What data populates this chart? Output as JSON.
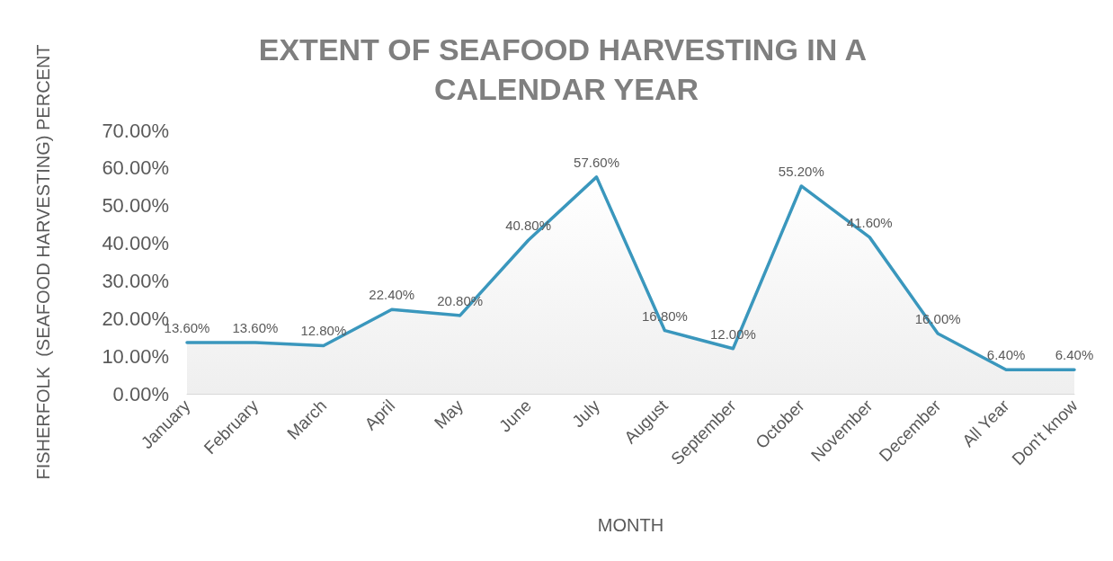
{
  "chart_data": {
    "type": "area",
    "title": "EXTENT OF SEAFOOD HARVESTING IN A CALENDAR YEAR",
    "xlabel": "MONTH",
    "ylabel": "FISHERFOLK  (SEAFOOD HARVESTING) PERCENT",
    "categories": [
      "January",
      "February",
      "March",
      "April",
      "May",
      "June",
      "July",
      "August",
      "September",
      "October",
      "November",
      "December",
      "All Year",
      "Don't know"
    ],
    "series": [
      {
        "color": "#3a97bd",
        "values": [
          13.6,
          13.6,
          12.8,
          22.4,
          20.8,
          40.8,
          57.6,
          16.8,
          12.0,
          55.2,
          41.6,
          16.0,
          6.4,
          6.4
        ],
        "value_labels": [
          "13.60%",
          "13.60%",
          "12.80%",
          "22.40%",
          "20.80%",
          "40.80%",
          "57.60%",
          "16.80%",
          "12.00%",
          "55.20%",
          "41.60%",
          "16.00%",
          "6.40%",
          "6.40%"
        ]
      }
    ],
    "ylim": [
      0,
      70
    ],
    "yticks": [
      {
        "value": 0,
        "label": "0.00%"
      },
      {
        "value": 10,
        "label": "10.00%"
      },
      {
        "value": 20,
        "label": "20.00%"
      },
      {
        "value": 30,
        "label": "30.00%"
      },
      {
        "value": 40,
        "label": "40.00%"
      },
      {
        "value": 50,
        "label": "50.00%"
      },
      {
        "value": 60,
        "label": "60.00%"
      },
      {
        "value": 70,
        "label": "70.00%"
      }
    ],
    "marker": "none",
    "line_style": "solid"
  }
}
